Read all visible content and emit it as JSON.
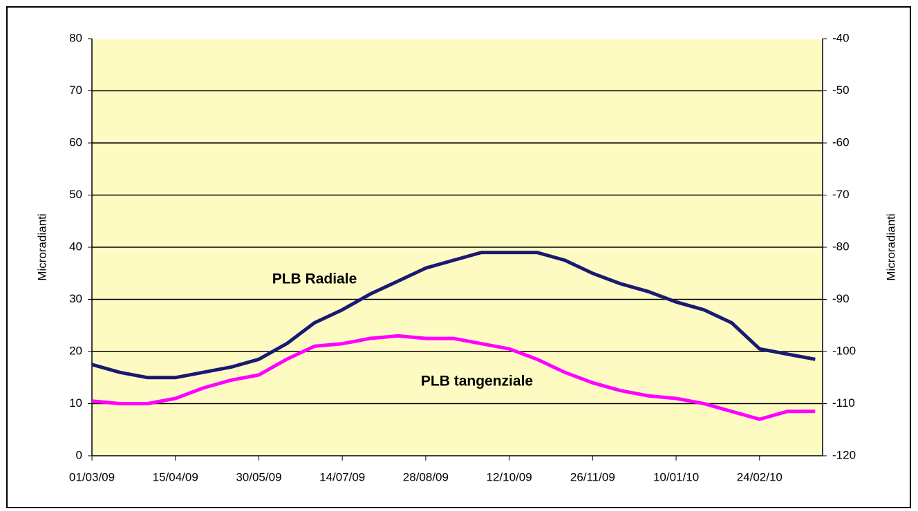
{
  "chart_data": {
    "type": "line",
    "x": [
      "2009-03-01",
      "2009-03-16",
      "2009-03-31",
      "2009-04-15",
      "2009-04-30",
      "2009-05-15",
      "2009-05-30",
      "2009-06-14",
      "2009-06-29",
      "2009-07-14",
      "2009-07-29",
      "2009-08-13",
      "2009-08-28",
      "2009-09-12",
      "2009-09-27",
      "2009-10-12",
      "2009-10-27",
      "2009-11-11",
      "2009-11-26",
      "2009-12-11",
      "2009-12-26",
      "2010-01-10",
      "2010-01-25",
      "2010-02-09",
      "2010-02-24",
      "2010-03-11",
      "2010-03-26"
    ],
    "series": [
      {
        "name": "PLB Radiale",
        "color": "#1a1a72",
        "values": [
          17.5,
          16,
          15,
          15,
          16,
          17,
          18.5,
          21.5,
          25.5,
          28,
          31,
          33.5,
          36,
          37.5,
          39,
          39,
          39,
          37.5,
          35,
          33,
          31.5,
          29.5,
          28,
          25.5,
          20.5,
          19.5,
          18.5
        ]
      },
      {
        "name": "PLB tangenziale",
        "color": "#ff00ff",
        "values": [
          10.5,
          10,
          10,
          11,
          13,
          14.5,
          15.5,
          18.5,
          21,
          21.5,
          22.5,
          23,
          22.5,
          22.5,
          21.5,
          20.5,
          18.5,
          16,
          14,
          12.5,
          11.5,
          11,
          10,
          8.5,
          7,
          8.5,
          8.5
        ]
      }
    ],
    "xlim": [
      "2009-03-01",
      "2010-03-30"
    ],
    "xticks": [
      {
        "value": "2009-03-01",
        "label": "01/03/09"
      },
      {
        "value": "2009-04-15",
        "label": "15/04/09"
      },
      {
        "value": "2009-05-30",
        "label": "30/05/09"
      },
      {
        "value": "2009-07-14",
        "label": "14/07/09"
      },
      {
        "value": "2009-08-28",
        "label": "28/08/09"
      },
      {
        "value": "2009-10-12",
        "label": "12/10/09"
      },
      {
        "value": "2009-11-26",
        "label": "26/11/09"
      },
      {
        "value": "2010-01-10",
        "label": "10/01/10"
      },
      {
        "value": "2010-02-24",
        "label": "24/02/10"
      }
    ],
    "ylim": [
      0,
      80
    ],
    "yticks": [
      0,
      10,
      20,
      30,
      40,
      50,
      60,
      70,
      80
    ],
    "y2lim": [
      -120,
      -40
    ],
    "y2ticks": [
      -120,
      -110,
      -100,
      -90,
      -80,
      -70,
      -60,
      -50,
      -40
    ],
    "ylabel": "Microradianti",
    "y2label": "Microradianti",
    "grid": true
  }
}
